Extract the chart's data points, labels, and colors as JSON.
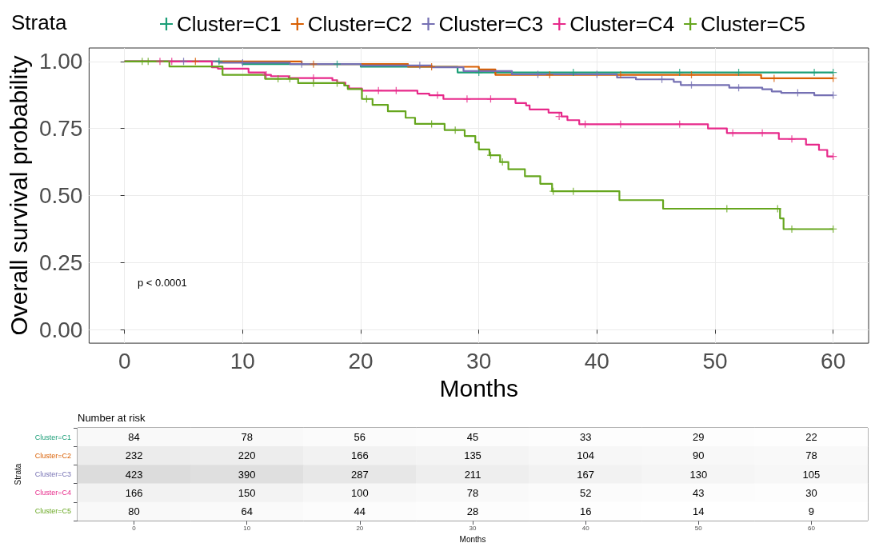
{
  "chart_data": [
    {
      "type": "step",
      "xlabel": "Months",
      "ylabel": "Overall survival probability",
      "legend_title": "Strata",
      "legend": "top",
      "grid": true,
      "xlim": [
        -3,
        63
      ],
      "xticks": [
        0,
        10,
        20,
        30,
        40,
        50,
        60
      ],
      "ylim": [
        -0.05,
        1.05
      ],
      "yticks": [
        {
          "value": 0,
          "label": "0.00"
        },
        {
          "value": 0.25,
          "label": "0.25"
        },
        {
          "value": 0.5,
          "label": "0.50"
        },
        {
          "value": 0.75,
          "label": "0.75"
        },
        {
          "value": 1,
          "label": "1.00"
        }
      ],
      "annotations": [
        "p < 0.0001"
      ],
      "series": [
        {
          "name": "Cluster=C1",
          "color": "#1b9e77",
          "x": [
            0,
            10,
            20,
            28.2,
            60
          ],
          "values": [
            1,
            0.99,
            0.98,
            0.959,
            0.959
          ]
        },
        {
          "name": "Cluster=C2",
          "color": "#d95f02",
          "x": [
            0,
            15,
            24,
            30,
            31.4,
            53.9,
            60
          ],
          "values": [
            1,
            0.99,
            0.98,
            0.97,
            0.95,
            0.937,
            0.937
          ]
        },
        {
          "name": "Cluster=C3",
          "color": "#7570b3",
          "x": [
            0,
            8,
            14,
            20,
            26,
            28.7,
            32.8,
            41.7,
            43.3,
            46.5,
            47.1,
            51.2,
            54,
            54.8,
            55.6,
            58.4,
            60
          ],
          "values": [
            1,
            0.995,
            0.99,
            0.985,
            0.978,
            0.964,
            0.952,
            0.94,
            0.933,
            0.924,
            0.912,
            0.902,
            0.896,
            0.888,
            0.883,
            0.874,
            0.874
          ]
        },
        {
          "name": "Cluster=C4",
          "color": "#e7298a",
          "x": [
            0,
            7.4,
            7.9,
            10.5,
            11.9,
            12.4,
            13.9,
            17.6,
            18,
            18.7,
            19,
            20.1,
            24.8,
            25.8,
            27,
            33.1,
            34,
            34.3,
            35.9,
            37,
            37.5,
            38.5,
            49.4,
            51,
            55.4,
            57.7,
            58.8,
            59.5,
            60
          ],
          "values": [
            1,
            0.978,
            0.973,
            0.959,
            0.95,
            0.945,
            0.938,
            0.93,
            0.921,
            0.91,
            0.899,
            0.891,
            0.88,
            0.874,
            0.86,
            0.845,
            0.836,
            0.821,
            0.809,
            0.795,
            0.781,
            0.766,
            0.75,
            0.733,
            0.711,
            0.69,
            0.67,
            0.646,
            0.646
          ]
        },
        {
          "name": "Cluster=C5",
          "color": "#66a61e",
          "x": [
            0,
            3.8,
            8.3,
            11.9,
            14.7,
            18.6,
            18.9,
            20.1,
            21,
            22.3,
            23.8,
            24.6,
            27.1,
            28.8,
            29.7,
            30,
            30.9,
            31.8,
            32.5,
            33.9,
            35.2,
            36.2,
            41.9,
            45.6,
            55.5,
            55.8,
            60
          ],
          "values": [
            1,
            0.981,
            0.95,
            0.935,
            0.919,
            0.91,
            0.897,
            0.86,
            0.838,
            0.814,
            0.79,
            0.767,
            0.744,
            0.722,
            0.698,
            0.672,
            0.65,
            0.625,
            0.598,
            0.572,
            0.544,
            0.516,
            0.483,
            0.451,
            0.415,
            0.375,
            0.375
          ]
        },
        {
          "type": "scatter",
          "marker": "cross",
          "color": "#1b9e77",
          "x": [
            8,
            18,
            30,
            38,
            47,
            52,
            58.4,
            60
          ],
          "values": [
            1,
            0.99,
            0.959,
            0.959,
            0.959,
            0.959,
            0.959,
            0.959
          ]
        },
        {
          "type": "scatter",
          "marker": "cross",
          "color": "#d95f02",
          "x": [
            6,
            16,
            26,
            36,
            42,
            48,
            55,
            60
          ],
          "values": [
            1,
            0.99,
            0.98,
            0.95,
            0.95,
            0.95,
            0.937,
            0.937
          ]
        },
        {
          "type": "scatter",
          "marker": "cross",
          "color": "#7570b3",
          "x": [
            5,
            10,
            15,
            25,
            35,
            40,
            45.5,
            48,
            52,
            57,
            60
          ],
          "values": [
            1,
            0.995,
            0.99,
            0.985,
            0.952,
            0.952,
            0.933,
            0.912,
            0.902,
            0.883,
            0.874
          ]
        },
        {
          "type": "scatter",
          "marker": "cross",
          "color": "#e7298a",
          "x": [
            3,
            4,
            12,
            16,
            21.5,
            23,
            26.5,
            29,
            31,
            36.8,
            39,
            42,
            47,
            51.5,
            54,
            56.5,
            60
          ],
          "values": [
            1,
            1,
            0.95,
            0.938,
            0.891,
            0.891,
            0.874,
            0.86,
            0.86,
            0.795,
            0.766,
            0.766,
            0.766,
            0.733,
            0.733,
            0.711,
            0.646
          ]
        },
        {
          "type": "scatter",
          "marker": "cross",
          "color": "#66a61e",
          "x": [
            1.5,
            2,
            13,
            14,
            16,
            18,
            20.5,
            26,
            28,
            31,
            32,
            36.3,
            38,
            51,
            55.3,
            56.5,
            60
          ],
          "values": [
            1,
            1,
            0.935,
            0.935,
            0.919,
            0.919,
            0.86,
            0.767,
            0.744,
            0.65,
            0.625,
            0.516,
            0.516,
            0.451,
            0.451,
            0.375,
            0.375
          ]
        }
      ]
    },
    {
      "type": "heatmap",
      "title": "Number at risk",
      "xlabel": "Months",
      "ylabel": "Strata",
      "data_labels": true,
      "categories": [
        "0",
        "10",
        "20",
        "30",
        "40",
        "50",
        "60"
      ],
      "y_categories": [
        "Cluster=C1",
        "Cluster=C2",
        "Cluster=C3",
        "Cluster=C4",
        "Cluster=C5"
      ],
      "cells": [
        [
          84,
          78,
          56,
          45,
          33,
          29,
          22
        ],
        [
          232,
          220,
          166,
          135,
          104,
          90,
          78
        ],
        [
          423,
          390,
          287,
          211,
          167,
          130,
          105
        ],
        [
          166,
          150,
          100,
          78,
          52,
          43,
          30
        ],
        [
          80,
          64,
          44,
          28,
          16,
          14,
          9
        ]
      ]
    }
  ]
}
